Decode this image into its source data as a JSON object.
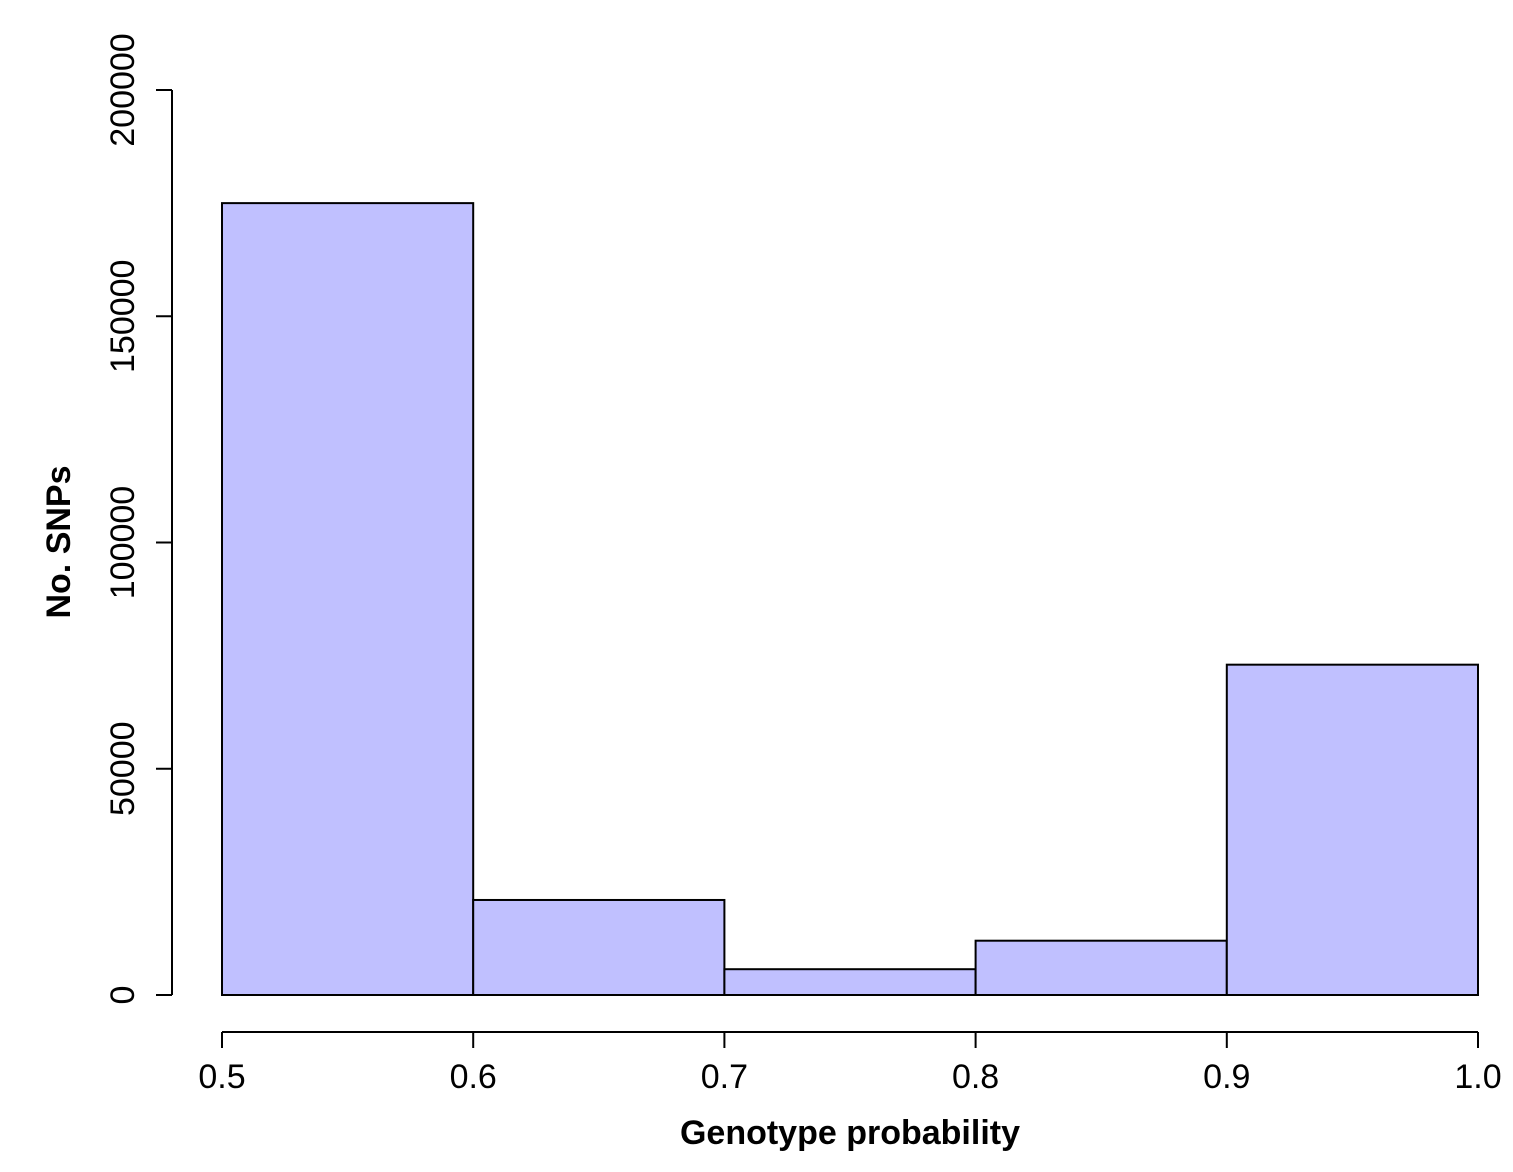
{
  "chart_data": {
    "type": "bar",
    "title": "",
    "xlabel": "Genotype probability",
    "ylabel": "No. SNPs",
    "bins": [
      {
        "x0": 0.5,
        "x1": 0.6,
        "value": 175000
      },
      {
        "x0": 0.6,
        "x1": 0.7,
        "value": 21000
      },
      {
        "x0": 0.7,
        "x1": 0.8,
        "value": 5700
      },
      {
        "x0": 0.8,
        "x1": 0.9,
        "value": 12000
      },
      {
        "x0": 0.9,
        "x1": 1.0,
        "value": 73000
      }
    ],
    "xlim": [
      0.5,
      1.0
    ],
    "ylim": [
      0,
      200000
    ],
    "xticks": [
      "0.5",
      "0.6",
      "0.7",
      "0.8",
      "0.9",
      "1.0"
    ],
    "yticks": [
      "0",
      "50000",
      "100000",
      "150000",
      "200000"
    ],
    "grid": false,
    "bar_color": "#c0c0ff"
  }
}
